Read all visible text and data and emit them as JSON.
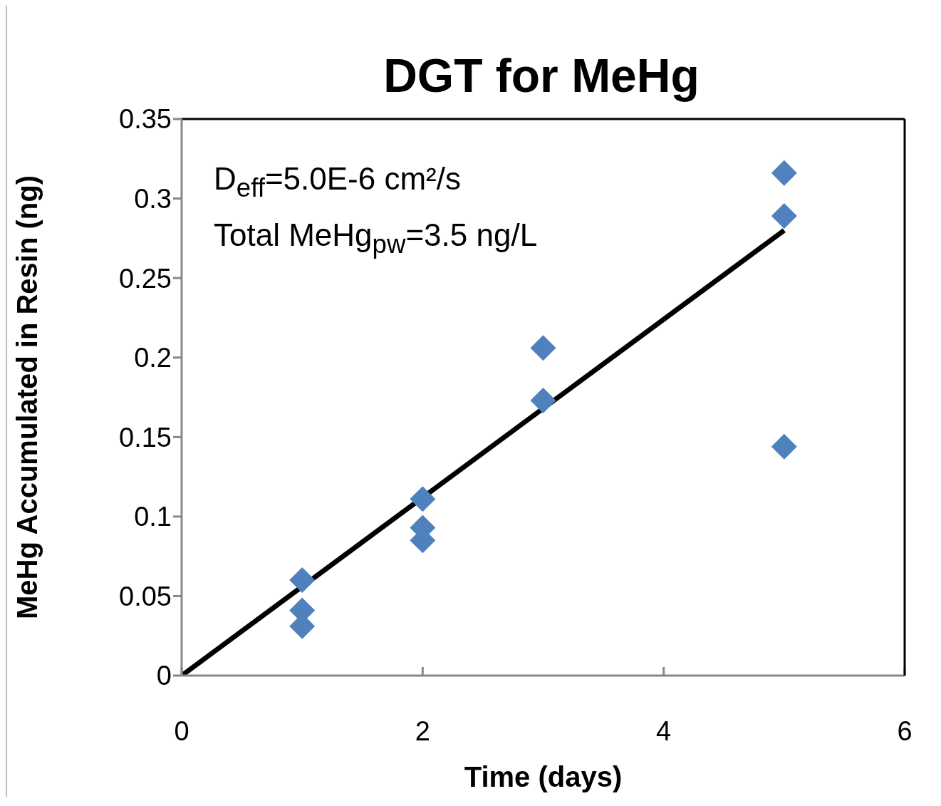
{
  "chart_data": {
    "type": "scatter",
    "title": "DGT for MeHg",
    "xlabel": "Time (days)",
    "ylabel": "MeHg Accumulated  in Resin  (ng)",
    "xlim": [
      0,
      6
    ],
    "xticks": [
      0,
      2,
      4,
      6
    ],
    "ylim": [
      0,
      0.35
    ],
    "yticks": [
      0,
      0.05,
      0.1,
      0.15,
      0.2,
      0.25,
      0.3,
      0.35
    ],
    "marker": "diamond",
    "legend": false,
    "grid": false,
    "annotations": [
      "D$_{eff}$=5.0E-6 cm²/s",
      "Total MeHg$_{pw}$=3.5 ng/L"
    ],
    "series": [
      {
        "color": "#4f81bd",
        "x": [
          1,
          1,
          1,
          2,
          2,
          2,
          3,
          3,
          5,
          5,
          5
        ],
        "values": [
          0.06,
          0.041,
          0.031,
          0.111,
          0.093,
          0.085,
          0.206,
          0.173,
          0.316,
          0.289,
          0.144
        ]
      },
      {
        "type": "line",
        "marker": "none",
        "color": "#000000",
        "x": [
          0,
          5
        ],
        "values": [
          0,
          0.28
        ]
      }
    ]
  }
}
